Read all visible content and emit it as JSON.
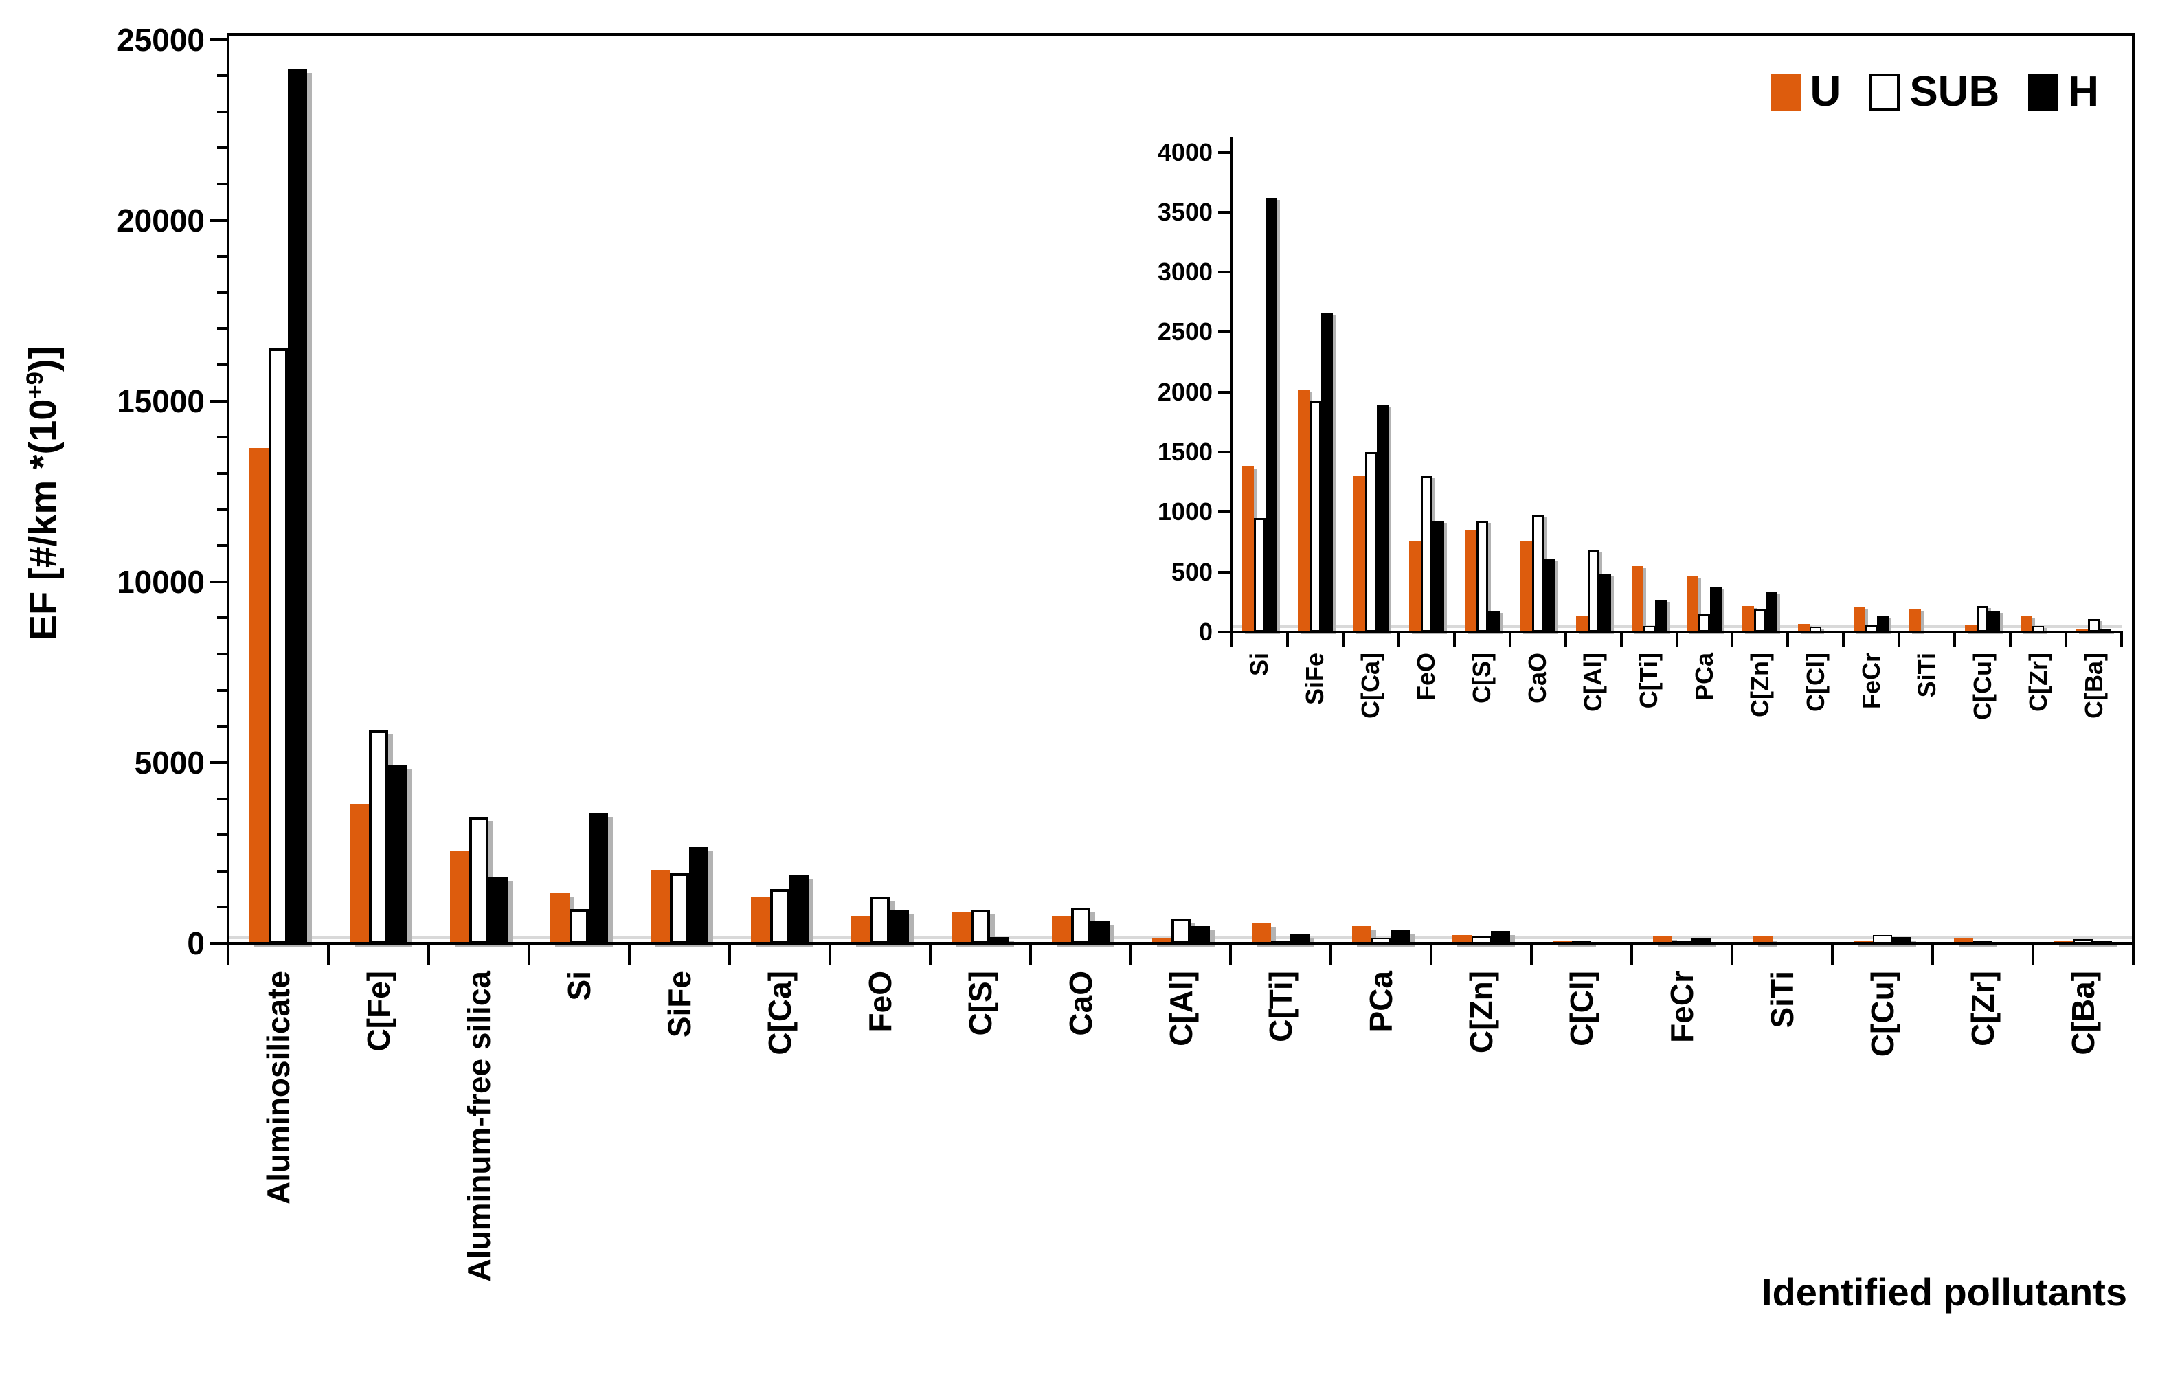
{
  "figure": {
    "background": "#FFFFFF",
    "y_axis_title": {
      "prefix": "EF [#/km *(10",
      "superscript": "+9",
      "suffix": ")]"
    },
    "x_axis_title": "Identified pollutants"
  },
  "chart_data": {
    "type": "bar",
    "title": "",
    "xlabel": "Identified pollutants",
    "ylabel": "EF [#/km *(10+9)]",
    "grid": false,
    "legend_position": "top-right-inside",
    "legend_order": [
      "U",
      "SUB",
      "H"
    ],
    "categories": [
      "Aluminosilicate",
      "C[Fe]",
      "Aluminum-free silica",
      "Si",
      "SiFe",
      "C[Ca]",
      "FeO",
      "C[S]",
      "CaO",
      "C[Al]",
      "C[Ti]",
      "PCa",
      "C[Zn]",
      "C[Cl]",
      "FeCr",
      "SiTi",
      "C[Cu]",
      "C[Zr]",
      "C[Ba]"
    ],
    "series": [
      {
        "name": "U",
        "color": "#DD5C0D",
        "style": "solid-orange",
        "values": [
          13700,
          3850,
          2550,
          1380,
          2020,
          1300,
          760,
          850,
          760,
          130,
          550,
          470,
          220,
          70,
          210,
          195,
          60,
          130,
          30
        ]
      },
      {
        "name": "SUB",
        "color": "#FFFFFF",
        "style": "white-black-outline",
        "values": [
          16450,
          5900,
          3500,
          950,
          1930,
          1500,
          1300,
          930,
          980,
          690,
          50,
          150,
          190,
          45,
          60,
          0,
          220,
          50,
          110
        ]
      },
      {
        "name": "H",
        "color": "#000000",
        "style": "solid-black",
        "values": [
          24200,
          4950,
          1850,
          3620,
          2660,
          1890,
          930,
          180,
          610,
          480,
          270,
          380,
          335,
          0,
          130,
          0,
          180,
          0,
          20
        ]
      }
    ],
    "main_axis": {
      "ylim": [
        0,
        25000
      ],
      "tick_step_labeled": 5000,
      "tick_step_minor": 1000,
      "tick_labels": [
        "0",
        "5000",
        "10000",
        "15000",
        "20000",
        "25000"
      ]
    },
    "inset_axis": {
      "ylim": [
        0,
        4000
      ],
      "tick_step_labeled": 500,
      "tick_labels": [
        "0",
        "500",
        "1000",
        "1500",
        "2000",
        "2500",
        "3000",
        "3500",
        "4000"
      ],
      "categories_start_index": 3,
      "categories": [
        "Si",
        "SiFe",
        "C[Ca]",
        "FeO",
        "C[S]",
        "CaO",
        "C[Al]",
        "C[Ti]",
        "PCa",
        "C[Zn]",
        "C[Cl]",
        "FeCr",
        "SiTi",
        "C[Cu]",
        "C[Zr]",
        "C[Ba]"
      ]
    },
    "shadow_color": "#b3b3b3"
  }
}
